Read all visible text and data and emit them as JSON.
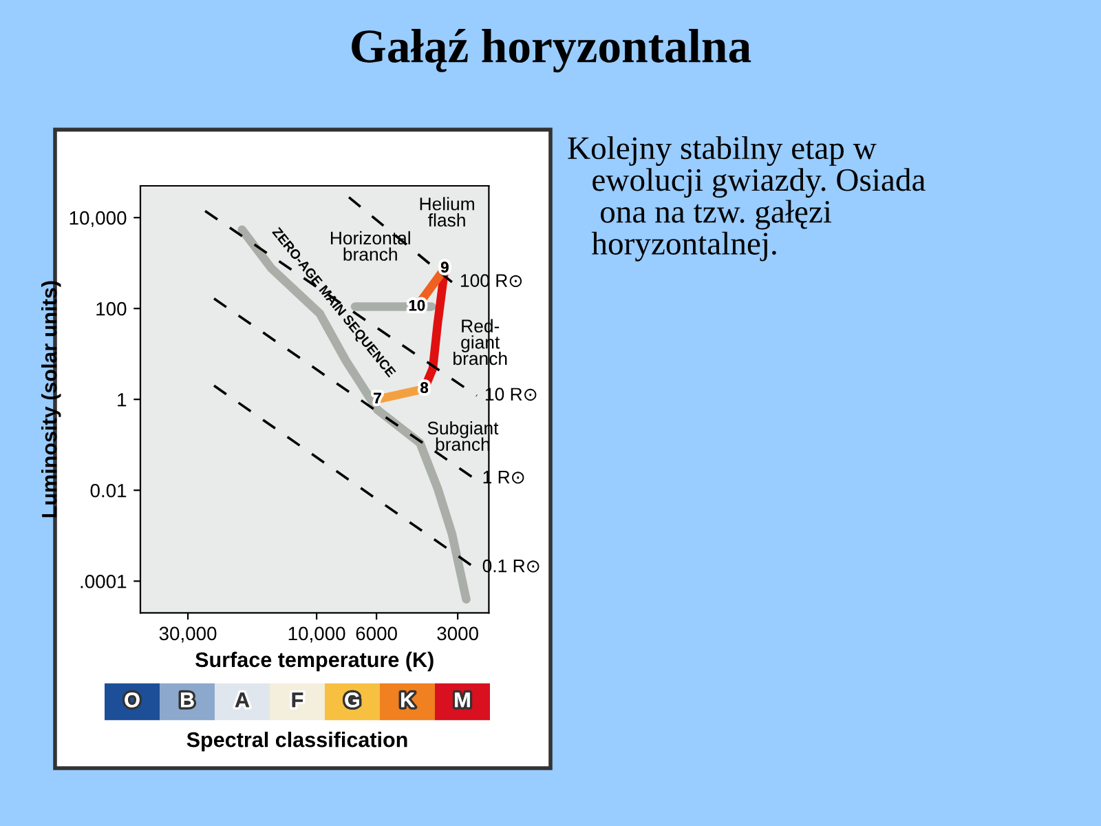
{
  "chart_data": [
    {
      "type": "line",
      "title": "Gałąź horyzontalna",
      "xlabel": "Surface temperature (K)",
      "ylabel": "Luminosity (solar units)",
      "log": "xy",
      "legend": false,
      "marker": "none",
      "xlim": [
        45000,
        2300
      ],
      "xticks": [
        {
          "value": 30000,
          "label": "30,000"
        },
        {
          "value": 10000,
          "label": "10,000"
        },
        6000,
        3000
      ],
      "ylim": [
        2e-05,
        50000
      ],
      "yticks": [
        {
          "value": 10000,
          "label": "10,000"
        },
        100,
        1,
        0.01,
        {
          "value": 0.0001,
          "label": ".0001"
        }
      ],
      "series": [
        {
          "color": "#a9aea9",
          "line_style": "solid",
          "x": [
            18900,
            14700,
            9730,
            7800,
            5950,
            4140,
            3560,
            3150,
            2790
          ],
          "values": [
            5400,
            760,
            77,
            7.2,
            0.59,
            0.11,
            0.011,
            0.0011,
            4e-05
          ]
        },
        {
          "color": "#a9aea9",
          "line_style": "solid",
          "x": [
            7200,
            3750
          ],
          "values": [
            110,
            110
          ]
        },
        {
          "color": "#f5a040",
          "line_style": "solid",
          "x": [
            5950,
            3990
          ],
          "values": [
            1,
            1.7
          ]
        },
        {
          "color": "#e01010",
          "line_style": "solid",
          "x": [
            3990,
            3710,
            3560,
            3350
          ],
          "values": [
            1.7,
            4.8,
            47,
            760
          ]
        },
        {
          "color": "#f06020",
          "line_style": "solid",
          "x": [
            3350,
            4250
          ],
          "values": [
            760,
            110
          ]
        },
        {
          "color": "#000000",
          "line_style": "dashed",
          "x": [
            7590,
            3150
          ],
          "values": [
            28000,
            380
          ]
        },
        {
          "color": "#000000",
          "line_style": "dashed",
          "x": [
            25900,
            2550
          ],
          "values": [
            14000,
            1.2
          ]
        },
        {
          "color": "#000000",
          "line_style": "dashed",
          "x": [
            24000,
            2600
          ],
          "values": [
            165,
            0.018
          ]
        },
        {
          "color": "#000000",
          "line_style": "dashed",
          "x": [
            24000,
            2600
          ],
          "values": [
            2,
            0.0002
          ]
        }
      ],
      "annotations": [
        {
          "text": "7",
          "x": 5950,
          "y": 1
        },
        {
          "text": "8",
          "x": 3990,
          "y": 1.7
        },
        {
          "text": "9",
          "x": 3350,
          "y": 760
        },
        {
          "text": "10",
          "x": 4250,
          "y": 110
        },
        "Helium\nflash",
        "Horizontal\nbranch",
        "Red-\ngiant\nbranch",
        "Subgiant\nbranch",
        {
          "text": "ZERO-AGE MAIN SEQUENCE",
          "x": 9730,
          "y": 77
        },
        {
          "text": "100 R⊙",
          "x": 3150,
          "y": 380
        },
        {
          "text": "10 R⊙",
          "x": 2550,
          "y": 1.2
        },
        {
          "text": "1 R⊙",
          "x": 2600,
          "y": 0.018
        },
        {
          "text": "0.1 R⊙",
          "x": 2600,
          "y": 0.0002
        },
        "Kolejny stabilny etap w\n   ewolucji gwiazdy. Osiada\n    ona na tzw. gałęzi\n   horyzontalnej."
      ]
    },
    {
      "type": "other",
      "xlabel": "Spectral classification",
      "categories": [
        "O",
        "B",
        "A",
        "F",
        "G",
        "K",
        "M"
      ],
      "colors": [
        "#1c4f98",
        "#8ca8cc",
        "#dfe6ee",
        "#f4efdc",
        "#f8c040",
        "#f08020",
        "#d81020"
      ]
    }
  ]
}
